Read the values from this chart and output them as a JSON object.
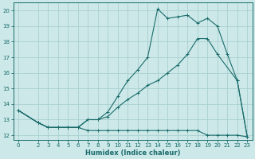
{
  "xlabel": "Humidex (Indice chaleur)",
  "bg_color": "#cce8e8",
  "grid_color": "#aacfcf",
  "line_color": "#1a6b6b",
  "xlim": [
    -0.5,
    23.5
  ],
  "ylim": [
    11.7,
    20.5
  ],
  "xticks": [
    0,
    2,
    3,
    4,
    5,
    6,
    7,
    8,
    9,
    10,
    11,
    12,
    13,
    14,
    15,
    16,
    17,
    18,
    19,
    20,
    21,
    22,
    23
  ],
  "yticks": [
    12,
    13,
    14,
    15,
    16,
    17,
    18,
    19,
    20
  ],
  "line1_x": [
    0,
    2,
    3,
    4,
    5,
    6,
    7,
    8,
    9,
    10,
    11,
    12,
    13,
    14,
    15,
    16,
    17,
    18,
    19,
    20,
    21,
    22,
    23
  ],
  "line1_y": [
    13.6,
    12.8,
    12.5,
    12.5,
    12.5,
    12.5,
    12.3,
    12.3,
    12.3,
    12.3,
    12.3,
    12.3,
    12.3,
    12.3,
    12.3,
    12.3,
    12.3,
    12.3,
    12.0,
    12.0,
    12.0,
    12.0,
    11.9
  ],
  "line2_x": [
    0,
    2,
    3,
    4,
    5,
    6,
    7,
    8,
    9,
    10,
    11,
    12,
    13,
    14,
    15,
    16,
    17,
    18,
    19,
    20,
    22,
    23
  ],
  "line2_y": [
    13.6,
    12.8,
    12.5,
    12.5,
    12.5,
    12.5,
    13.0,
    13.0,
    13.2,
    13.8,
    14.3,
    14.7,
    15.2,
    15.5,
    16.0,
    16.5,
    17.2,
    18.2,
    18.2,
    17.2,
    15.5,
    11.9
  ],
  "line3_x": [
    0,
    2,
    3,
    4,
    5,
    6,
    7,
    8,
    9,
    10,
    11,
    12,
    13,
    14,
    15,
    16,
    17,
    18,
    19,
    20,
    21,
    22,
    23
  ],
  "line3_y": [
    13.6,
    12.8,
    12.5,
    12.5,
    12.5,
    12.5,
    13.0,
    13.0,
    13.5,
    14.5,
    15.5,
    16.2,
    17.0,
    20.1,
    19.5,
    19.6,
    19.7,
    19.2,
    19.5,
    19.0,
    17.2,
    15.5,
    11.9
  ]
}
